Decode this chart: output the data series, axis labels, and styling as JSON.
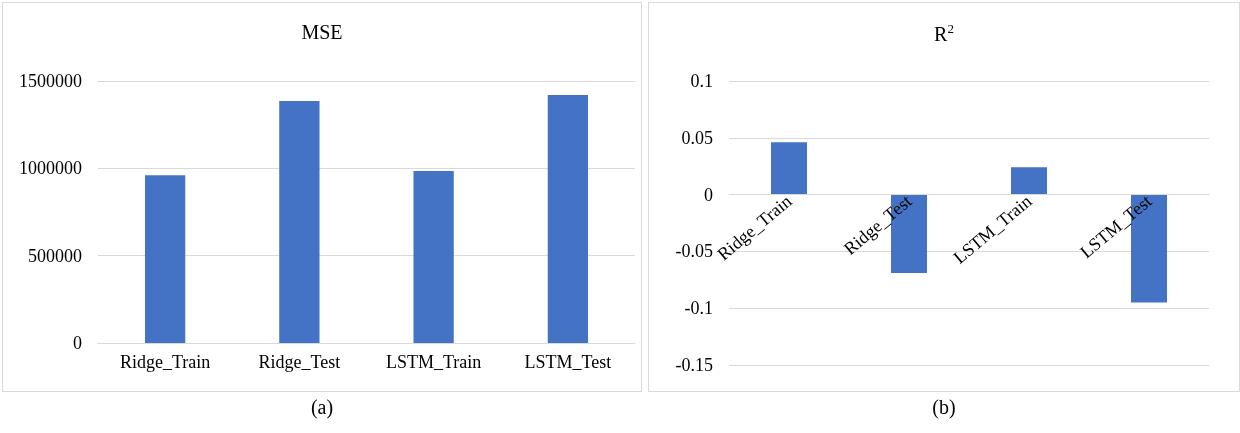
{
  "chart_data": [
    {
      "type": "bar",
      "title": "MSE",
      "categories": [
        "Ridge_Train",
        "Ridge_Test",
        "LSTM_Train",
        "LSTM_Test"
      ],
      "values": [
        960000,
        1385000,
        985000,
        1420000
      ],
      "color": "#4472c4",
      "ylim": [
        0,
        1500000
      ],
      "yticks": [
        0,
        {
          "value": 500000,
          "label": "500000"
        },
        {
          "value": 1000000,
          "label": "1000000"
        },
        {
          "value": 1500000,
          "label": "1500000"
        }
      ],
      "grid": "y",
      "annotations": [
        "(a)"
      ]
    },
    {
      "type": "bar",
      "title": "R$^{2}$",
      "categories": [
        "Ridge_Train",
        "Ridge_Test",
        "LSTM_Train",
        "LSTM_Test"
      ],
      "values": [
        0.046,
        -0.069,
        0.024,
        -0.095
      ],
      "color": "#4472c4",
      "ylim": [
        -0.15,
        0.1
      ],
      "yticks": [
        -0.15,
        -0.1,
        -0.05,
        0,
        0.05,
        0.1
      ],
      "grid": "y",
      "annotations": [
        "(b)"
      ]
    }
  ]
}
